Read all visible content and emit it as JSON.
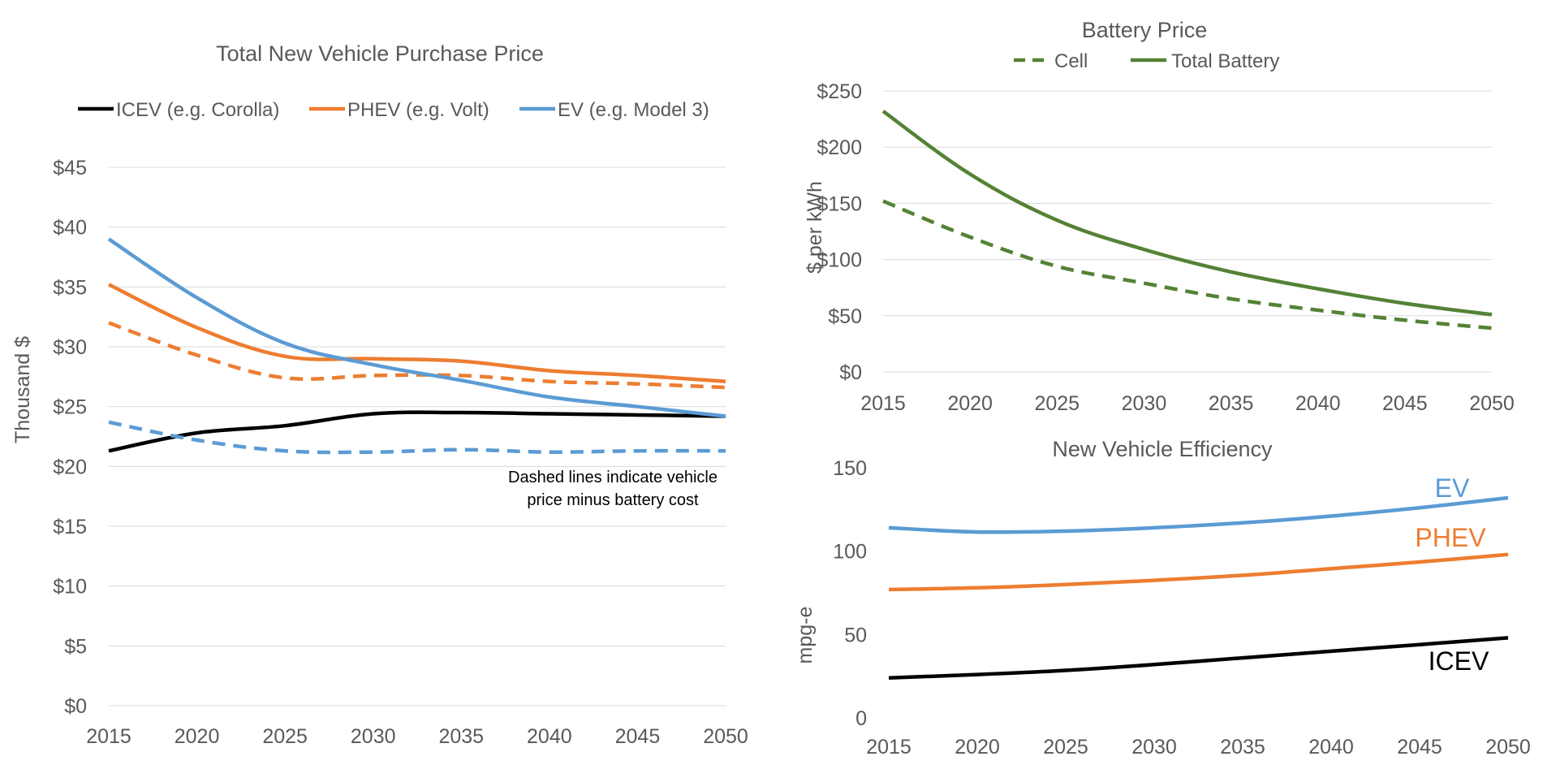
{
  "chart_data": [
    {
      "type": "line",
      "title": "Total New Vehicle Purchase Price",
      "ylabel": "Thousand $",
      "x": [
        2015,
        2020,
        2025,
        2030,
        2035,
        2040,
        2045,
        2050
      ],
      "xticks": [
        "2015",
        "2020",
        "2025",
        "2030",
        "2035",
        "2040",
        "2045",
        "2050"
      ],
      "ylim": [
        0,
        45
      ],
      "yticks": [
        "$0",
        "$5",
        "$10",
        "$15",
        "$20",
        "$25",
        "$30",
        "$35",
        "$40",
        "$45"
      ],
      "grid": true,
      "legend_position": "top",
      "legend": [
        {
          "label": "ICEV (e.g. Corolla)",
          "color": "#000000"
        },
        {
          "label": "PHEV (e.g. Volt)",
          "color": "#ed7d31"
        },
        {
          "label": "EV (e.g. Model 3)",
          "color": "#5b9bd5"
        }
      ],
      "series": [
        {
          "name": "ICEV (e.g. Corolla)",
          "color": "#000000",
          "dashed": false,
          "values": [
            21.3,
            22.8,
            23.4,
            24.4,
            24.5,
            24.4,
            24.3,
            24.2
          ]
        },
        {
          "name": "PHEV (e.g. Volt)",
          "color": "#ed7d31",
          "dashed": false,
          "values": [
            35.2,
            31.6,
            29.2,
            29.0,
            28.8,
            28.0,
            27.6,
            27.1
          ]
        },
        {
          "color": "#ed7d31",
          "dashed": true,
          "values": [
            32.0,
            29.3,
            27.4,
            27.6,
            27.6,
            27.1,
            26.9,
            26.6
          ]
        },
        {
          "name": "EV (e.g. Model 3)",
          "color": "#5b9bd5",
          "dashed": false,
          "values": [
            39.0,
            34.1,
            30.3,
            28.5,
            27.2,
            25.8,
            25.0,
            24.2
          ]
        },
        {
          "color": "#5b9bd5",
          "dashed": true,
          "values": [
            23.7,
            22.2,
            21.3,
            21.2,
            21.4,
            21.2,
            21.3,
            21.3
          ]
        }
      ],
      "annotation": [
        "Dashed lines indicate vehicle",
        "price minus battery cost"
      ]
    },
    {
      "type": "line",
      "title": "Battery Price",
      "ylabel": "$ per kWh",
      "x": [
        2015,
        2020,
        2025,
        2030,
        2035,
        2040,
        2045,
        2050
      ],
      "xticks": [
        "2015",
        "2020",
        "2025",
        "2030",
        "2035",
        "2040",
        "2045",
        "2050"
      ],
      "ylim": [
        0,
        250
      ],
      "yticks": [
        "$0",
        "$50",
        "$100",
        "$150",
        "$200",
        "$250"
      ],
      "grid": true,
      "legend_position": "top",
      "legend": [
        {
          "label": "Cell",
          "color": "#548235",
          "dashed": true
        },
        {
          "label": "Total Battery",
          "color": "#548235",
          "dashed": false
        }
      ],
      "series": [
        {
          "name": "Cell",
          "color": "#548235",
          "dashed": true,
          "values": [
            152,
            120,
            94,
            79,
            65,
            55,
            46,
            39
          ]
        },
        {
          "name": "Total Battery",
          "color": "#548235",
          "dashed": false,
          "values": [
            232,
            176,
            135,
            109,
            89,
            74,
            61,
            51
          ]
        }
      ]
    },
    {
      "type": "line",
      "title": "New Vehicle Efficiency",
      "ylabel": "mpg-e",
      "x": [
        2015,
        2020,
        2025,
        2030,
        2035,
        2040,
        2045,
        2050
      ],
      "xticks": [
        "2015",
        "2020",
        "2025",
        "2030",
        "2035",
        "2040",
        "2045",
        "2050"
      ],
      "ylim": [
        0,
        150
      ],
      "yticks": [
        "0",
        "50",
        "100",
        "150"
      ],
      "grid": false,
      "series": [
        {
          "name": "EV",
          "color": "#5b9bd5",
          "dashed": false,
          "values": [
            114,
            111.5,
            112,
            114,
            117,
            121,
            126,
            132
          ]
        },
        {
          "name": "PHEV",
          "color": "#ed7d31",
          "dashed": false,
          "values": [
            77,
            78,
            80,
            82.5,
            85.5,
            89.5,
            93.5,
            98
          ]
        },
        {
          "name": "ICEV",
          "color": "#000000",
          "dashed": false,
          "values": [
            24,
            26,
            28.5,
            32,
            36,
            40,
            44,
            48
          ]
        }
      ]
    }
  ]
}
